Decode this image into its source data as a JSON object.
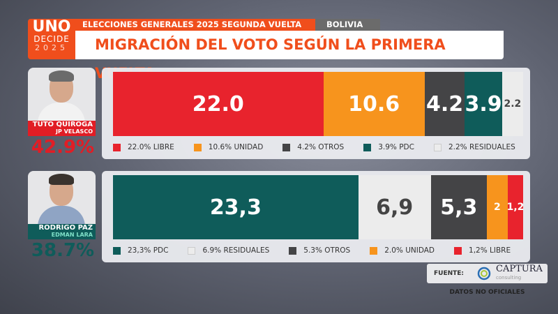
{
  "logo": {
    "line1": "UNO",
    "line2": "DECIDE",
    "line3": "2025"
  },
  "header": {
    "event": "ELECCIONES GENERALES 2025 SEGUNDA VUELTA",
    "country": "BOLIVIA",
    "title": "MIGRACIÓN DEL VOTO SEGÚN LA PRIMERA VUELTA"
  },
  "colors": {
    "LIBRE": "#e8232d",
    "UNIDAD": "#f7941d",
    "OTROS": "#444446",
    "PDC": "#0f5c5a",
    "RESIDUALES": "#ececec"
  },
  "candidates": [
    {
      "name": "TUTO QUIROGA",
      "running_mate": "JP VELASCO",
      "percent": "42.9%",
      "color": "#e11d25",
      "segments": [
        {
          "value": 22.0,
          "label": "22.0",
          "party": "LIBRE",
          "legend": "22.0% LIBRE"
        },
        {
          "value": 10.6,
          "label": "10.6",
          "party": "UNIDAD",
          "legend": "10.6% UNIDAD"
        },
        {
          "value": 4.2,
          "label": "4.2",
          "party": "OTROS",
          "legend": "4.2% OTROS"
        },
        {
          "value": 3.9,
          "label": "3.9",
          "party": "PDC",
          "legend": "3.9% PDC"
        },
        {
          "value": 2.2,
          "label": "2.2",
          "party": "RESIDUALES",
          "legend": "2.2% RESIDUALES"
        }
      ]
    },
    {
      "name": "RODRIGO PAZ",
      "running_mate": "EDMAN LARA",
      "percent": "38.7%",
      "color": "#0f5c5a",
      "segments": [
        {
          "value": 23.3,
          "label": "23,3",
          "party": "PDC",
          "legend": "23,3% PDC"
        },
        {
          "value": 6.9,
          "label": "6,9",
          "party": "RESIDUALES",
          "legend": "6.9% RESIDUALES"
        },
        {
          "value": 5.3,
          "label": "5,3",
          "party": "OTROS",
          "legend": "5.3% OTROS"
        },
        {
          "value": 2.0,
          "label": "2",
          "party": "UNIDAD",
          "legend": "2.0% UNIDAD"
        },
        {
          "value": 1.2,
          "label": "1,2",
          "party": "LIBRE",
          "legend": "1,2% LIBRE"
        }
      ]
    }
  ],
  "source": {
    "label": "FUENTE:",
    "brand": "CAPTURA",
    "brand_sub": "consulting",
    "note": "DATOS NO OFICIALES"
  }
}
